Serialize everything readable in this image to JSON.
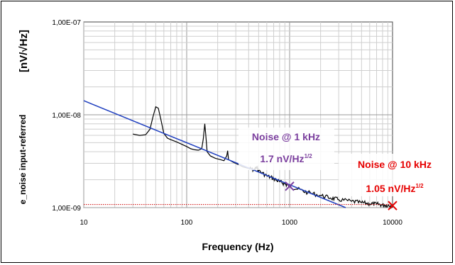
{
  "chart_data": {
    "type": "line",
    "xlabel": "Frequency (Hz)",
    "ylabel_units": "[nV/√Hz]",
    "ylabel_side": "e_noise input-referred",
    "x_scale": "log",
    "y_scale": "log",
    "xlim": [
      10,
      10000
    ],
    "ylim": [
      1e-09,
      1e-07
    ],
    "x_ticks": [
      {
        "value": 10,
        "label": "10"
      },
      {
        "value": 100,
        "label": "100"
      },
      {
        "value": 1000,
        "label": "1000"
      },
      {
        "value": 10000,
        "label": "10000"
      }
    ],
    "y_ticks": [
      {
        "value": 1e-09,
        "label": "1,00E-09"
      },
      {
        "value": 1e-08,
        "label": "1,00E-08"
      },
      {
        "value": 1e-07,
        "label": "1,00E-07"
      }
    ],
    "grid": "major and minor",
    "series": [
      {
        "role": "measured",
        "color": "#000000",
        "points": [
          [
            30,
            6.2e-09
          ],
          [
            35,
            6e-09
          ],
          [
            40,
            6.1e-09
          ],
          [
            44,
            7e-09
          ],
          [
            47,
            9.5e-09
          ],
          [
            50,
            1.22e-08
          ],
          [
            53,
            1.18e-08
          ],
          [
            56,
            9e-09
          ],
          [
            60,
            6.3e-09
          ],
          [
            65,
            5.6e-09
          ],
          [
            70,
            5.4e-09
          ],
          [
            80,
            5.1e-09
          ],
          [
            90,
            4.8e-09
          ],
          [
            100,
            4.55e-09
          ],
          [
            110,
            4.3e-09
          ],
          [
            120,
            4.2e-09
          ],
          [
            130,
            4.15e-09
          ],
          [
            140,
            4.3e-09
          ],
          [
            145,
            5.5e-09
          ],
          [
            150,
            8e-09
          ],
          [
            153,
            6.2e-09
          ],
          [
            158,
            4e-09
          ],
          [
            170,
            3.6e-09
          ],
          [
            190,
            3.4e-09
          ],
          [
            210,
            3.3e-09
          ],
          [
            230,
            3.2e-09
          ],
          [
            245,
            3.6e-09
          ],
          [
            250,
            4.1e-09
          ],
          [
            255,
            3.3e-09
          ],
          [
            280,
            3.1e-09
          ],
          [
            320,
            2.9e-09
          ],
          [
            350,
            2.75e-09
          ],
          [
            400,
            2.65e-09
          ],
          [
            450,
            2.55e-09
          ],
          [
            480,
            2.7e-09
          ],
          [
            500,
            2.5e-09
          ],
          [
            600,
            2.2e-09
          ],
          [
            700,
            2.05e-09
          ],
          [
            800,
            1.9e-09
          ],
          [
            900,
            1.8e-09
          ],
          [
            1000,
            1.7e-09
          ],
          [
            1200,
            1.58e-09
          ],
          [
            1500,
            1.45e-09
          ],
          [
            2000,
            1.35e-09
          ],
          [
            2500,
            1.27e-09
          ],
          [
            3000,
            1.22e-09
          ],
          [
            4000,
            1.17e-09
          ],
          [
            5000,
            1.13e-09
          ],
          [
            6000,
            1.1e-09
          ],
          [
            7000,
            1.09e-09
          ],
          [
            8000,
            1.07e-09
          ],
          [
            9000,
            1.06e-09
          ],
          [
            10000,
            1.05e-09
          ]
        ]
      },
      {
        "role": "1/f fit",
        "color": "#1f3fbf",
        "points": [
          [
            10,
            1.42e-08
          ],
          [
            3500,
            1e-09
          ]
        ]
      },
      {
        "role": "white noise floor",
        "color": "#cc0000",
        "style": "dotted",
        "points": [
          [
            10,
            1.08e-09
          ],
          [
            10000,
            1.08e-09
          ]
        ]
      }
    ],
    "markers": [
      {
        "x": 1000,
        "y": 1.7e-09,
        "color": "#7b3f9e",
        "symbol": "x"
      },
      {
        "x": 10000,
        "y": 1.05e-09,
        "color": "#e60000",
        "symbol": "x"
      }
    ],
    "annotations": [
      {
        "title": "Noise @ 1 kHz",
        "value": "1.7 nV/Hz",
        "sup": "1/2",
        "color": "#7b3f9e"
      },
      {
        "title": "Noise @ 10 kHz",
        "value": "1.05 nV/Hz",
        "sup": "1/2",
        "color": "#e60000"
      }
    ]
  }
}
